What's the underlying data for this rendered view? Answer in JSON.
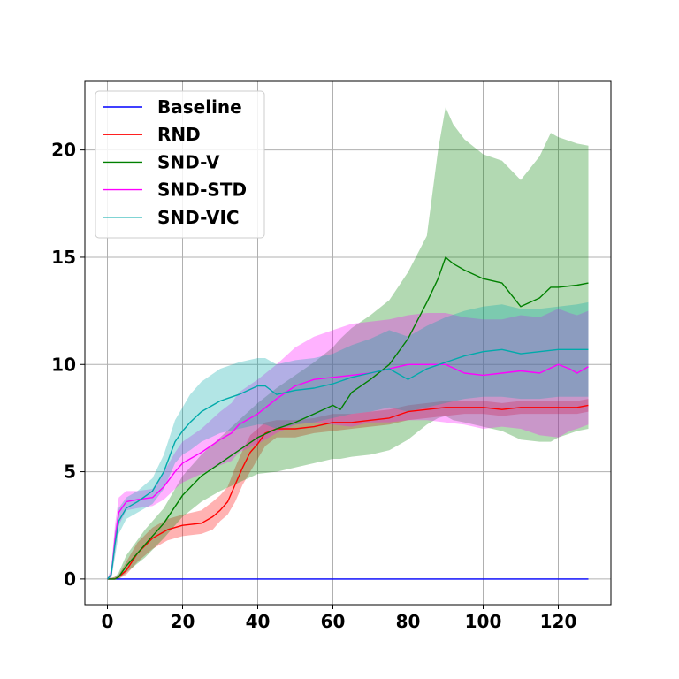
{
  "chart_data": {
    "type": "line",
    "title": "",
    "xlabel": "",
    "ylabel": "",
    "xlim": [
      -6,
      134
    ],
    "ylim": [
      -1.2,
      23.2
    ],
    "xticks": [
      0,
      20,
      40,
      60,
      80,
      100,
      120
    ],
    "yticks": [
      0,
      5,
      10,
      15,
      20
    ],
    "grid": true,
    "legend_position": "top-left",
    "series": [
      {
        "name": "Baseline",
        "color": "#0000ff",
        "x": [
          0,
          128
        ],
        "y": [
          0,
          0
        ],
        "lower": [
          0,
          0
        ],
        "upper": [
          0,
          0
        ]
      },
      {
        "name": "RND",
        "color": "#ff0000",
        "x": [
          0,
          2,
          3,
          5,
          8,
          12,
          16,
          20,
          25,
          28,
          30,
          32,
          34,
          36,
          38,
          40,
          42,
          45,
          50,
          55,
          60,
          65,
          70,
          75,
          80,
          85,
          90,
          95,
          100,
          105,
          110,
          115,
          120,
          125,
          128
        ],
        "y": [
          0,
          0,
          0.1,
          0.4,
          1.2,
          1.9,
          2.3,
          2.5,
          2.6,
          2.9,
          3.2,
          3.6,
          4.4,
          5.2,
          5.9,
          6.3,
          6.8,
          7.0,
          7.0,
          7.1,
          7.3,
          7.3,
          7.4,
          7.5,
          7.8,
          7.9,
          8.0,
          8.0,
          8.0,
          7.9,
          8.0,
          8.0,
          8.0,
          8.0,
          8.1
        ],
        "lower": [
          0,
          0,
          0,
          0.2,
          0.8,
          1.4,
          1.8,
          2.0,
          2.1,
          2.3,
          2.7,
          3.0,
          3.6,
          4.4,
          5.0,
          5.6,
          6.2,
          6.6,
          6.6,
          6.8,
          6.9,
          7.0,
          7.1,
          7.2,
          7.4,
          7.5,
          7.6,
          7.7,
          7.7,
          7.6,
          7.7,
          7.7,
          7.7,
          7.7,
          7.8
        ],
        "upper": [
          0,
          0.1,
          0.2,
          0.8,
          1.7,
          2.4,
          2.8,
          3.0,
          3.2,
          3.6,
          3.9,
          4.3,
          5.2,
          6.0,
          6.7,
          7.0,
          7.3,
          7.4,
          7.4,
          7.5,
          7.7,
          7.7,
          7.8,
          7.9,
          8.1,
          8.2,
          8.3,
          8.3,
          8.3,
          8.2,
          8.3,
          8.3,
          8.3,
          8.3,
          8.4
        ]
      },
      {
        "name": "SND-V",
        "color": "#008000",
        "x": [
          0,
          2,
          3,
          5,
          10,
          15,
          20,
          25,
          30,
          35,
          40,
          45,
          50,
          55,
          60,
          62,
          65,
          70,
          75,
          80,
          85,
          88,
          90,
          92,
          95,
          100,
          105,
          110,
          115,
          118,
          120,
          125,
          128
        ],
        "y": [
          0,
          0,
          0.1,
          0.6,
          1.6,
          2.6,
          3.9,
          4.8,
          5.4,
          6.0,
          6.6,
          7.0,
          7.3,
          7.7,
          8.1,
          7.9,
          8.7,
          9.3,
          10.0,
          11.2,
          12.9,
          14.0,
          15.0,
          14.7,
          14.4,
          14.0,
          13.8,
          12.7,
          13.1,
          13.6,
          13.6,
          13.7,
          13.8
        ],
        "lower": [
          0,
          0,
          0,
          0.3,
          1.0,
          1.9,
          2.9,
          3.6,
          4.1,
          4.5,
          4.9,
          5.0,
          5.2,
          5.4,
          5.6,
          5.6,
          5.7,
          5.8,
          6.0,
          6.5,
          7.2,
          7.5,
          7.6,
          7.4,
          7.3,
          7.1,
          6.9,
          6.5,
          6.4,
          6.4,
          6.6,
          6.9,
          7.0
        ],
        "upper": [
          0,
          0.1,
          0.3,
          1.1,
          2.3,
          3.3,
          4.8,
          5.8,
          6.6,
          7.4,
          8.2,
          8.9,
          9.5,
          10.1,
          10.8,
          11.2,
          11.7,
          12.3,
          13.0,
          14.3,
          16.0,
          20.0,
          22.0,
          21.2,
          20.5,
          19.8,
          19.5,
          18.6,
          19.7,
          20.8,
          20.6,
          20.3,
          20.2
        ]
      },
      {
        "name": "SND-STD",
        "color": "#ff00ff",
        "x": [
          0,
          1,
          2,
          3,
          5,
          8,
          12,
          15,
          18,
          20,
          25,
          30,
          33,
          35,
          40,
          45,
          50,
          55,
          60,
          65,
          70,
          75,
          80,
          85,
          90,
          95,
          100,
          105,
          110,
          115,
          120,
          123,
          125,
          128
        ],
        "y": [
          0,
          0.2,
          1.8,
          3.1,
          3.6,
          3.7,
          3.8,
          4.3,
          5.0,
          5.4,
          5.9,
          6.5,
          6.8,
          7.2,
          7.7,
          8.4,
          9.0,
          9.3,
          9.4,
          9.5,
          9.6,
          9.8,
          10.0,
          10.0,
          10.0,
          9.6,
          9.5,
          9.6,
          9.7,
          9.6,
          10.0,
          9.8,
          9.6,
          9.9
        ],
        "lower": [
          0,
          0,
          1.2,
          2.5,
          3.2,
          3.3,
          3.4,
          3.7,
          4.2,
          4.5,
          4.9,
          5.3,
          5.5,
          5.9,
          6.3,
          6.8,
          7.2,
          7.3,
          7.2,
          7.1,
          7.3,
          7.3,
          7.4,
          7.4,
          7.3,
          7.2,
          7.0,
          7.1,
          7.0,
          6.7,
          6.6,
          6.9,
          7.0,
          7.2
        ],
        "upper": [
          0,
          0.5,
          2.5,
          3.8,
          4.1,
          4.1,
          4.2,
          5.0,
          5.9,
          6.4,
          7.0,
          7.8,
          8.2,
          8.7,
          9.3,
          10.0,
          10.8,
          11.3,
          11.6,
          11.9,
          12.0,
          12.1,
          12.3,
          12.4,
          12.4,
          12.2,
          12.1,
          12.1,
          12.3,
          12.2,
          12.6,
          12.4,
          12.3,
          12.5
        ]
      },
      {
        "name": "SND-VIC",
        "color": "#00aaaa",
        "x": [
          0,
          1,
          2,
          3,
          5,
          8,
          12,
          15,
          18,
          20,
          22,
          25,
          30,
          35,
          40,
          42,
          45,
          50,
          55,
          60,
          65,
          70,
          75,
          80,
          85,
          90,
          95,
          100,
          105,
          110,
          115,
          120,
          125,
          128
        ],
        "y": [
          0,
          0.2,
          1.6,
          2.7,
          3.3,
          3.6,
          4.1,
          5.0,
          6.4,
          6.9,
          7.3,
          7.8,
          8.3,
          8.6,
          9.0,
          9.0,
          8.6,
          8.8,
          8.9,
          9.1,
          9.4,
          9.6,
          9.8,
          9.3,
          9.8,
          10.1,
          10.4,
          10.6,
          10.7,
          10.5,
          10.6,
          10.7,
          10.7,
          10.7
        ],
        "lower": [
          0,
          0,
          1.0,
          2.1,
          2.8,
          3.1,
          3.5,
          4.2,
          5.4,
          5.8,
          6.0,
          6.4,
          6.8,
          7.0,
          7.2,
          7.2,
          7.0,
          7.2,
          7.3,
          7.5,
          7.7,
          7.8,
          8.0,
          7.8,
          8.0,
          8.2,
          8.4,
          8.5,
          8.5,
          8.4,
          8.4,
          8.5,
          8.5,
          8.5
        ],
        "upper": [
          0,
          0.4,
          2.2,
          3.3,
          3.8,
          4.1,
          4.7,
          5.8,
          7.4,
          8.0,
          8.6,
          9.2,
          9.8,
          10.1,
          10.3,
          10.3,
          10.0,
          10.2,
          10.3,
          10.5,
          10.9,
          11.2,
          11.6,
          11.3,
          11.8,
          12.2,
          12.5,
          12.7,
          12.8,
          12.6,
          12.6,
          12.7,
          12.8,
          12.9
        ]
      }
    ]
  }
}
